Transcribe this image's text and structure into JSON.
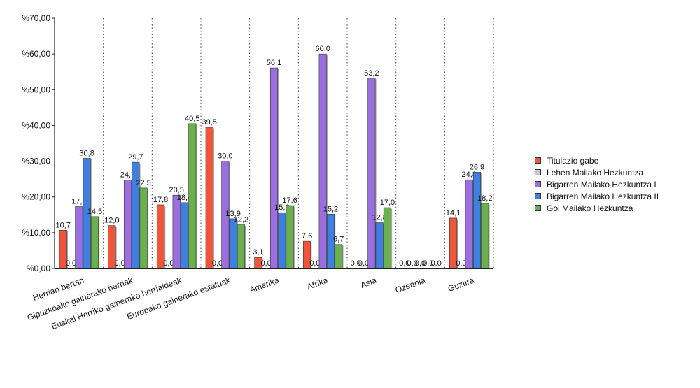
{
  "chart_data": {
    "type": "bar",
    "title": "",
    "xlabel": "",
    "ylabel": "",
    "ylim": [
      0,
      70
    ],
    "yticks": [
      "%0,00",
      "%10,00",
      "%20,00",
      "%30,00",
      "%40,00",
      "%50,00",
      "%60,00",
      "%70,00"
    ],
    "grid": "vertical dotted separators between categories",
    "legend_position": "right",
    "categories": [
      "Herrian bertan",
      "Gipuzkoako gainerako herriak",
      "Euskal Herriko gainerako herrialdeak",
      "Europako gainerako estatuak",
      "Amerika",
      "Afrika",
      "Asia",
      "Ozeania",
      "Guztira"
    ],
    "series": [
      {
        "name": "Titulazio gabe",
        "color": "#f0553a",
        "values": [
          10.7,
          12.0,
          17.8,
          39.5,
          3.1,
          7.6,
          0.0,
          0.0,
          14.1
        ],
        "labels": [
          "10,7",
          "12,0",
          "17,8",
          "39,5",
          "3,1",
          "7,6",
          "0,0",
          "0,0",
          "14,1"
        ]
      },
      {
        "name": "Lehen Mailako Hezkuntza",
        "color": "#c8c8c8",
        "values": [
          0.0,
          0.0,
          0.0,
          0.0,
          0.0,
          0.0,
          0.0,
          0.0,
          0.0
        ],
        "labels": [
          "0,0",
          "0,0",
          "0,0",
          "0,0",
          "0,0",
          "0,0",
          "0,0",
          "0,0",
          "0,0"
        ]
      },
      {
        "name": "Bigarren Mailako Hezkuntza I",
        "color": "#9b6fe0",
        "values": [
          17.3,
          24.7,
          20.5,
          30.0,
          56.1,
          60.0,
          53.2,
          0.0,
          24.8
        ],
        "labels": [
          "17,3",
          "24,7",
          "20,5",
          "30,0",
          "56,1",
          "60,0",
          "53,2",
          "0,0",
          "24,8"
        ]
      },
      {
        "name": "Bigarren Mailako Hezkuntza II",
        "color": "#3f7fe0",
        "values": [
          30.8,
          29.7,
          18.4,
          13.9,
          15.6,
          15.2,
          12.8,
          0.0,
          26.9
        ],
        "labels": [
          "30,8",
          "29,7",
          "18,4",
          "13,9",
          "15,6",
          "15,2",
          "12,8",
          "0,0",
          "26,9"
        ]
      },
      {
        "name": "Goi Mailako Hezkuntza",
        "color": "#6ab04c",
        "values": [
          14.5,
          22.5,
          40.5,
          12.2,
          17.6,
          6.7,
          17.0,
          0.0,
          18.2
        ],
        "labels": [
          "14,5",
          "22,5",
          "40,5",
          "12,2",
          "17,6",
          "6,7",
          "17,0",
          "0,0",
          "18,2"
        ]
      }
    ]
  }
}
